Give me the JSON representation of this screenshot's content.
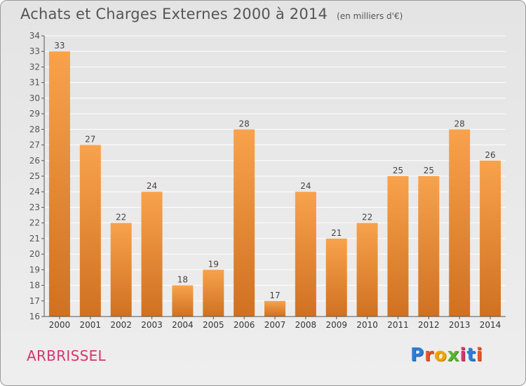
{
  "title": "Achats et Charges Externes 2000 à 2014",
  "subtitle": "(en milliers d'€)",
  "town": "ARBRISSEL",
  "logo_text": "Proxiti",
  "colors": {
    "bar_light": "#f8a24c",
    "bar_dark": "#cf7121",
    "town": "#d2386e",
    "axis": "#555555",
    "grid": "#ffffff"
  },
  "chart_data": {
    "type": "bar",
    "title": "Achats et Charges Externes 2000 à 2014",
    "subtitle": "(en milliers d'€)",
    "categories": [
      "2000",
      "2001",
      "2002",
      "2003",
      "2004",
      "2005",
      "2006",
      "2007",
      "2008",
      "2009",
      "2010",
      "2011",
      "2012",
      "2013",
      "2014"
    ],
    "values": [
      33,
      27,
      22,
      24,
      18,
      19,
      28,
      17,
      24,
      21,
      22,
      25,
      25,
      28,
      26
    ],
    "ylim": [
      16,
      34
    ],
    "yticks": [
      16,
      17,
      18,
      19,
      20,
      21,
      22,
      23,
      24,
      25,
      26,
      27,
      28,
      29,
      30,
      31,
      32,
      33,
      34
    ],
    "grid": true,
    "data_labels": true
  }
}
